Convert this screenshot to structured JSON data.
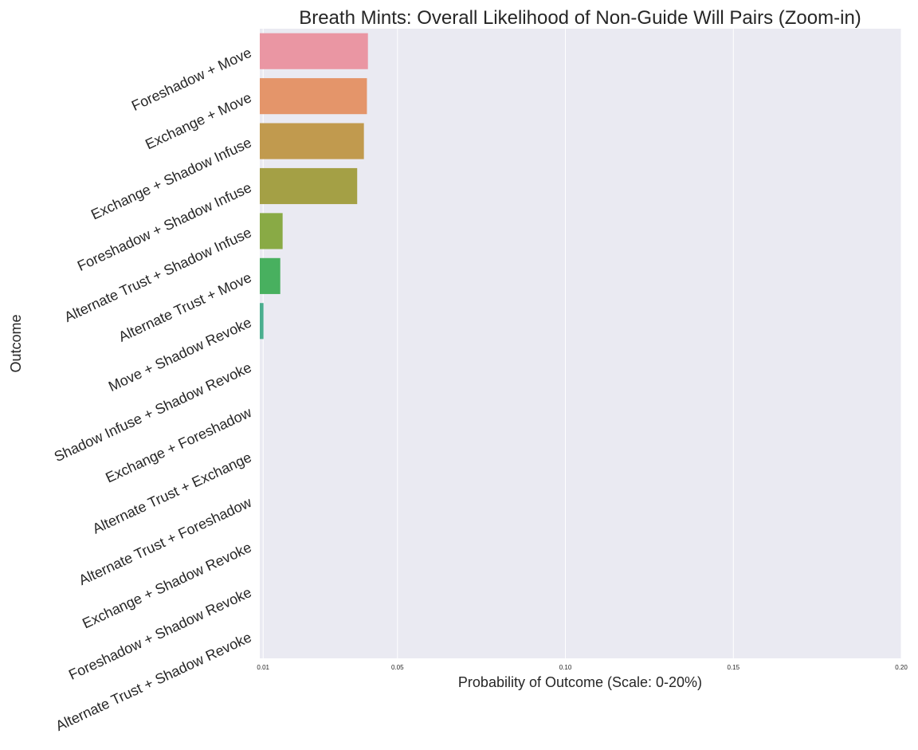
{
  "chart_data": {
    "type": "bar",
    "orientation": "horizontal",
    "title": "Breath Mints: Overall Likelihood of Non-Guide Will Pairs (Zoom-in)",
    "xlabel": "Probability of Outcome (Scale: 0-20%)",
    "ylabel": "Outcome",
    "xlim": [
      0,
      0.2
    ],
    "x_ticks": [
      {
        "value": 0.01,
        "label": "0.01"
      },
      {
        "value": 0.05,
        "label": "0.05"
      },
      {
        "value": 0.1,
        "label": "0.10"
      },
      {
        "value": 0.15,
        "label": "0.15"
      },
      {
        "value": 0.2,
        "label": "0.20"
      }
    ],
    "grid": true,
    "categories": [
      "Foreshadow + Move",
      "Exchange + Move",
      "Exchange + Shadow Infuse",
      "Foreshadow + Shadow Infuse",
      "Alternate Trust + Shadow Infuse",
      "Alternate Trust + Move",
      "Move + Shadow Revoke",
      "Shadow Infuse + Shadow Revoke",
      "Exchange + Foreshadow",
      "Alternate Trust + Exchange",
      "Alternate Trust + Foreshadow",
      "Exchange + Shadow Revoke",
      "Foreshadow + Shadow Revoke",
      "Alternate Trust + Shadow Revoke"
    ],
    "values": [
      0.0412,
      0.0409,
      0.04,
      0.038,
      0.0158,
      0.0151,
      0.0101,
      0.0089,
      0.0016,
      0.0005,
      0.0004,
      0.0002,
      0.0002,
      0.0001
    ],
    "colors": [
      "#ea96a3",
      "#e4956a",
      "#c19a4e",
      "#a4a045",
      "#89aa45",
      "#48b05f",
      "#4aae8e",
      "#4daaa9",
      "#50a7bd",
      "#55a4cc",
      "#8b9bde",
      "#c793d4",
      "#e28ab8",
      "#e991a4"
    ]
  }
}
